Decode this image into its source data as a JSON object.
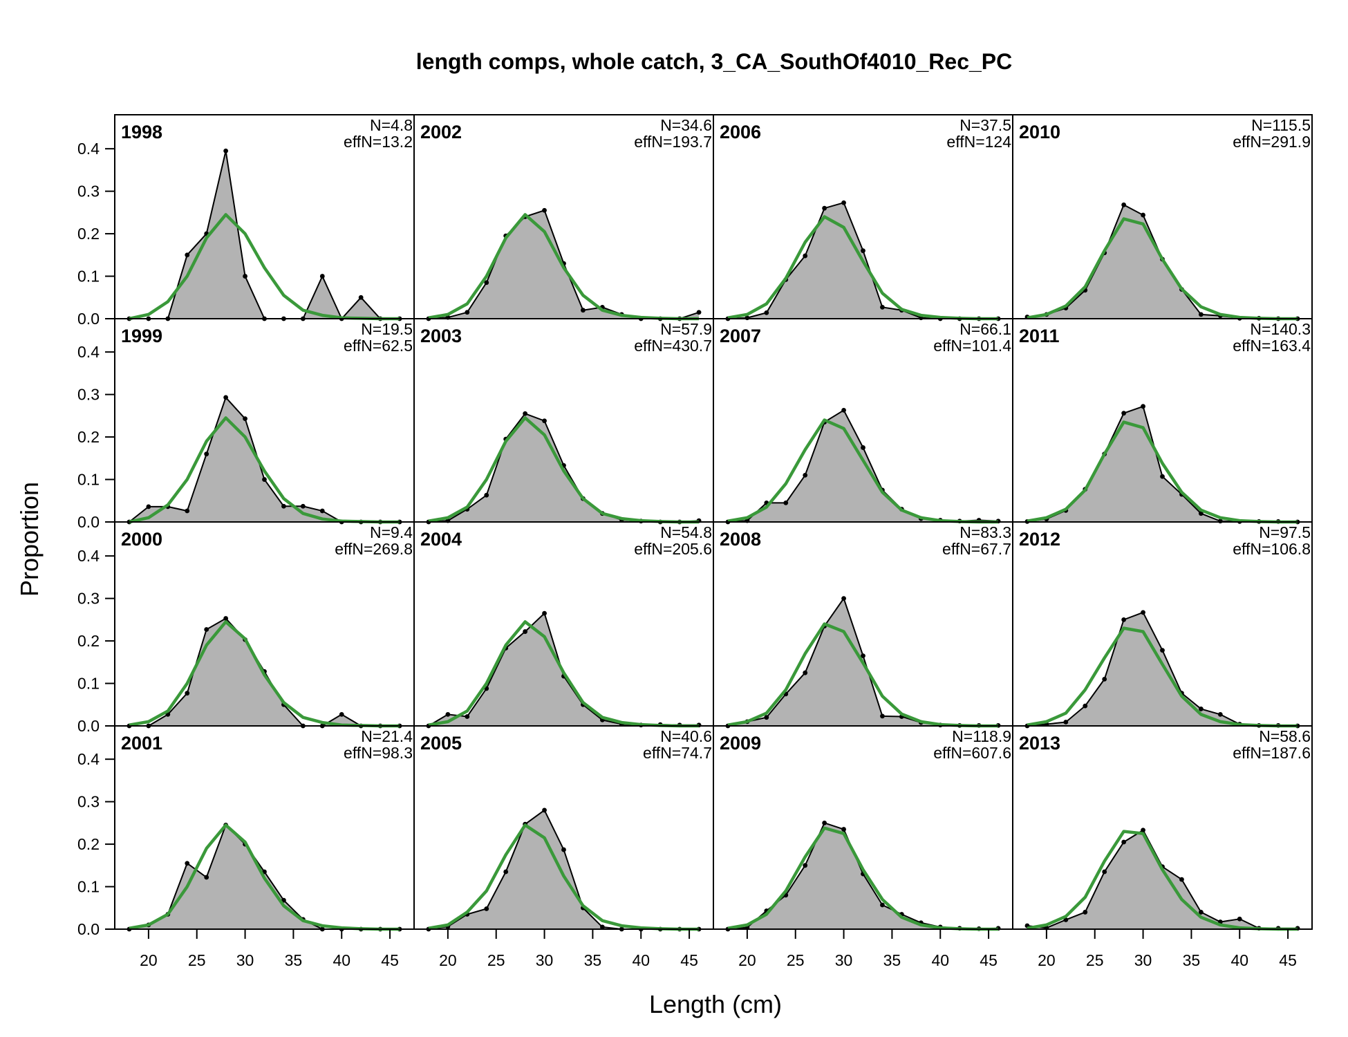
{
  "chart_data": {
    "type": "area",
    "title": "length comps, whole catch, 3_CA_SouthOf4010_Rec_PC",
    "xlabel": "Length (cm)",
    "ylabel": "Proportion",
    "xlim": [
      16.5,
      47.5
    ],
    "ylim": [
      0,
      0.48
    ],
    "x_ticks": [
      20,
      25,
      30,
      35,
      40,
      45
    ],
    "y_ticks": [
      "0.0",
      "0.1",
      "0.2",
      "0.3",
      "0.4"
    ],
    "x": [
      18,
      20,
      22,
      24,
      26,
      28,
      30,
      32,
      34,
      36,
      38,
      40,
      42,
      44,
      46
    ],
    "observed_color": "#000000",
    "observed_fill": "#b3b3b3",
    "expected_color": "#3a993a",
    "panels": [
      {
        "year": "1998",
        "N": "N=4.8",
        "effN": "effN=13.2",
        "obs": [
          0,
          0,
          0,
          0.15,
          0.2,
          0.395,
          0.1,
          0,
          0,
          0,
          0.1,
          0,
          0.05,
          0,
          0
        ],
        "exp": [
          0,
          0.01,
          0.04,
          0.1,
          0.19,
          0.245,
          0.2,
          0.12,
          0.055,
          0.02,
          0.008,
          0.002,
          0.001,
          0,
          0
        ]
      },
      {
        "year": "1999",
        "N": "N=19.5",
        "effN": "effN=62.5",
        "obs": [
          0,
          0.036,
          0.036,
          0.026,
          0.16,
          0.293,
          0.243,
          0.1,
          0.037,
          0.037,
          0.026,
          0,
          0,
          0,
          0
        ],
        "exp": [
          0,
          0.01,
          0.04,
          0.1,
          0.19,
          0.245,
          0.2,
          0.12,
          0.055,
          0.02,
          0.007,
          0.002,
          0.001,
          0,
          0
        ]
      },
      {
        "year": "2000",
        "N": "N=9.4",
        "effN": "effN=269.8",
        "obs": [
          0,
          0,
          0.027,
          0.077,
          0.227,
          0.253,
          0.203,
          0.128,
          0.05,
          0,
          0,
          0.027,
          0,
          0,
          0
        ],
        "exp": [
          0.002,
          0.01,
          0.035,
          0.1,
          0.19,
          0.245,
          0.205,
          0.12,
          0.055,
          0.02,
          0.008,
          0.002,
          0.001,
          0,
          0
        ]
      },
      {
        "year": "2001",
        "N": "N=21.4",
        "effN": "effN=98.3",
        "obs": [
          0,
          0.01,
          0.035,
          0.155,
          0.122,
          0.245,
          0.2,
          0.135,
          0.068,
          0.023,
          0,
          0,
          0,
          0,
          0
        ],
        "exp": [
          0.002,
          0.01,
          0.035,
          0.1,
          0.19,
          0.245,
          0.205,
          0.12,
          0.055,
          0.02,
          0.008,
          0.003,
          0.001,
          0,
          0
        ]
      },
      {
        "year": "2002",
        "N": "N=34.6",
        "effN": "effN=193.7",
        "obs": [
          0,
          0.003,
          0.015,
          0.085,
          0.195,
          0.24,
          0.255,
          0.13,
          0.02,
          0.027,
          0.01,
          0,
          0,
          0,
          0.015
        ],
        "exp": [
          0.002,
          0.01,
          0.035,
          0.1,
          0.19,
          0.245,
          0.205,
          0.12,
          0.055,
          0.02,
          0.008,
          0.003,
          0.001,
          0,
          0
        ]
      },
      {
        "year": "2003",
        "N": "N=57.9",
        "effN": "effN=430.7",
        "obs": [
          0,
          0.003,
          0.03,
          0.063,
          0.195,
          0.255,
          0.238,
          0.133,
          0.055,
          0.02,
          0.005,
          0.002,
          0,
          0,
          0.003
        ],
        "exp": [
          0.002,
          0.01,
          0.035,
          0.1,
          0.19,
          0.245,
          0.205,
          0.12,
          0.055,
          0.02,
          0.008,
          0.003,
          0.001,
          0,
          0
        ]
      },
      {
        "year": "2004",
        "N": "N=54.8",
        "effN": "effN=205.6",
        "obs": [
          0,
          0.027,
          0.022,
          0.088,
          0.183,
          0.222,
          0.265,
          0.117,
          0.05,
          0.014,
          0.004,
          0.002,
          0.003,
          0.002,
          0.002
        ],
        "exp": [
          0.002,
          0.01,
          0.035,
          0.1,
          0.19,
          0.245,
          0.21,
          0.125,
          0.055,
          0.02,
          0.008,
          0.003,
          0.001,
          0,
          0
        ]
      },
      {
        "year": "2005",
        "N": "N=40.6",
        "effN": "effN=74.7",
        "obs": [
          0,
          0.006,
          0.035,
          0.048,
          0.135,
          0.247,
          0.28,
          0.187,
          0.05,
          0.005,
          0,
          0,
          0,
          0,
          0
        ],
        "exp": [
          0.002,
          0.01,
          0.04,
          0.09,
          0.175,
          0.245,
          0.215,
          0.125,
          0.055,
          0.02,
          0.008,
          0.003,
          0.001,
          0,
          0
        ]
      },
      {
        "year": "2006",
        "N": "N=37.5",
        "effN": "effN=124",
        "obs": [
          0,
          0.002,
          0.014,
          0.092,
          0.148,
          0.26,
          0.273,
          0.16,
          0.027,
          0.02,
          0.002,
          0,
          0,
          0,
          0
        ],
        "exp": [
          0.002,
          0.01,
          0.035,
          0.095,
          0.18,
          0.24,
          0.215,
          0.135,
          0.06,
          0.022,
          0.008,
          0.003,
          0.001,
          0,
          0
        ]
      },
      {
        "year": "2007",
        "N": "N=66.1",
        "effN": "effN=101.4",
        "obs": [
          0,
          0.003,
          0.045,
          0.045,
          0.11,
          0.235,
          0.263,
          0.175,
          0.075,
          0.03,
          0.008,
          0.004,
          0.002,
          0.004,
          0.002
        ],
        "exp": [
          0.002,
          0.01,
          0.035,
          0.09,
          0.17,
          0.24,
          0.22,
          0.145,
          0.07,
          0.028,
          0.01,
          0.003,
          0.001,
          0,
          0
        ]
      },
      {
        "year": "2008",
        "N": "N=83.3",
        "effN": "effN=67.7",
        "obs": [
          0,
          0.01,
          0.02,
          0.075,
          0.125,
          0.235,
          0.3,
          0.165,
          0.023,
          0.022,
          0.008,
          0.002,
          0.001,
          0.001,
          0.001
        ],
        "exp": [
          0.002,
          0.01,
          0.03,
          0.085,
          0.17,
          0.24,
          0.222,
          0.148,
          0.07,
          0.028,
          0.01,
          0.003,
          0.001,
          0,
          0
        ]
      },
      {
        "year": "2009",
        "N": "N=118.9",
        "effN": "effN=607.6",
        "obs": [
          0,
          0.004,
          0.043,
          0.08,
          0.15,
          0.25,
          0.235,
          0.13,
          0.057,
          0.035,
          0.015,
          0.005,
          0.002,
          0.001,
          0.002
        ],
        "exp": [
          0.002,
          0.01,
          0.035,
          0.09,
          0.17,
          0.238,
          0.225,
          0.14,
          0.07,
          0.028,
          0.01,
          0.003,
          0.001,
          0,
          0
        ]
      },
      {
        "year": "2010",
        "N": "N=115.5",
        "effN": "effN=291.9",
        "obs": [
          0.004,
          0.01,
          0.025,
          0.067,
          0.155,
          0.268,
          0.244,
          0.14,
          0.069,
          0.01,
          0.007,
          0.001,
          0.001,
          0,
          0
        ],
        "exp": [
          0.002,
          0.01,
          0.03,
          0.075,
          0.16,
          0.235,
          0.223,
          0.14,
          0.07,
          0.028,
          0.01,
          0.003,
          0.001,
          0,
          0
        ]
      },
      {
        "year": "2011",
        "N": "N=140.3",
        "effN": "effN=163.4",
        "obs": [
          0.001,
          0.007,
          0.027,
          0.077,
          0.16,
          0.256,
          0.272,
          0.107,
          0.065,
          0.02,
          0.002,
          0.001,
          0.001,
          0.001,
          0
        ],
        "exp": [
          0.002,
          0.01,
          0.03,
          0.075,
          0.16,
          0.235,
          0.222,
          0.138,
          0.07,
          0.028,
          0.01,
          0.003,
          0.001,
          0,
          0
        ]
      },
      {
        "year": "2012",
        "N": "N=97.5",
        "effN": "effN=106.8",
        "obs": [
          0,
          0.004,
          0.009,
          0.047,
          0.11,
          0.25,
          0.267,
          0.178,
          0.077,
          0.04,
          0.027,
          0.004,
          0.001,
          0.001,
          0
        ],
        "exp": [
          0.002,
          0.01,
          0.03,
          0.085,
          0.16,
          0.23,
          0.222,
          0.145,
          0.07,
          0.027,
          0.01,
          0.003,
          0.001,
          0,
          0
        ]
      },
      {
        "year": "2013",
        "N": "N=58.6",
        "effN": "effN=187.6",
        "obs": [
          0.008,
          0.003,
          0.022,
          0.04,
          0.135,
          0.205,
          0.233,
          0.147,
          0.117,
          0.04,
          0.017,
          0.024,
          0.002,
          0.002,
          0.002
        ],
        "exp": [
          0.002,
          0.01,
          0.03,
          0.075,
          0.16,
          0.23,
          0.225,
          0.14,
          0.07,
          0.028,
          0.01,
          0.003,
          0.001,
          0,
          0
        ]
      }
    ]
  }
}
